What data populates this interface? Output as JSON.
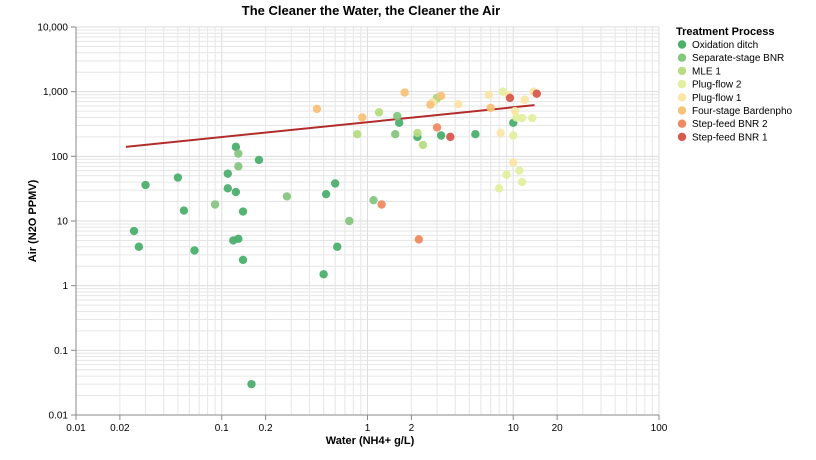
{
  "chart_data": {
    "type": "scatter",
    "title": "The Cleaner the Water, the Cleaner the Air",
    "xlabel": "Water (NH4+ g/L)",
    "ylabel": "Air (N2O PPMV)",
    "x_scale": "log",
    "y_scale": "log",
    "xlim": [
      0.01,
      100
    ],
    "ylim": [
      0.01,
      10000
    ],
    "grid": true,
    "x_ticks": [
      {
        "value": 0.01,
        "label": "0.01"
      },
      {
        "value": 0.02,
        "label": "0.02"
      },
      {
        "value": 0.1,
        "label": "0.1"
      },
      {
        "value": 0.2,
        "label": "0.2"
      },
      {
        "value": 1,
        "label": "1"
      },
      {
        "value": 2,
        "label": "2"
      },
      {
        "value": 10,
        "label": "10"
      },
      {
        "value": 20,
        "label": "20"
      },
      {
        "value": 100,
        "label": "100"
      }
    ],
    "y_ticks": [
      {
        "value": 0.01,
        "label": "0.01"
      },
      {
        "value": 0.1,
        "label": "0.1"
      },
      {
        "value": 1,
        "label": "1"
      },
      {
        "value": 10,
        "label": "10"
      },
      {
        "value": 100,
        "label": "100"
      },
      {
        "value": 1000,
        "label": "1,000"
      },
      {
        "value": 10000,
        "label": "10,000"
      }
    ],
    "legend": {
      "title": "Treatment Process",
      "position": "right"
    },
    "trend_line": {
      "color": "#b22c2c",
      "from": [
        0.022,
        140
      ],
      "to": [
        14,
        620
      ]
    },
    "series": [
      {
        "name": "Oxidation ditch",
        "color": "#4caf6e",
        "points": [
          [
            0.025,
            7
          ],
          [
            0.027,
            4
          ],
          [
            0.03,
            36
          ],
          [
            0.05,
            47
          ],
          [
            0.055,
            14.5
          ],
          [
            0.065,
            3.5
          ],
          [
            0.11,
            32
          ],
          [
            0.11,
            54
          ],
          [
            0.12,
            5
          ],
          [
            0.125,
            140
          ],
          [
            0.125,
            28
          ],
          [
            0.13,
            5.3
          ],
          [
            0.14,
            14
          ],
          [
            0.14,
            2.5
          ],
          [
            0.16,
            0.03
          ],
          [
            0.18,
            88
          ],
          [
            0.5,
            1.5
          ],
          [
            0.52,
            26
          ],
          [
            0.6,
            38
          ],
          [
            0.62,
            4
          ],
          [
            1.65,
            330
          ],
          [
            2.2,
            200
          ],
          [
            3.2,
            210
          ],
          [
            5.5,
            220
          ],
          [
            10,
            330
          ]
        ]
      },
      {
        "name": "Separate-stage BNR",
        "color": "#86c67f",
        "points": [
          [
            0.09,
            18
          ],
          [
            0.13,
            70
          ],
          [
            0.13,
            110
          ],
          [
            0.28,
            24
          ],
          [
            0.75,
            10
          ],
          [
            1.1,
            21
          ],
          [
            1.55,
            220
          ],
          [
            1.6,
            420
          ],
          [
            3,
            800
          ]
        ]
      },
      {
        "name": "MLE 1",
        "color": "#b7dc82",
        "points": [
          [
            0.85,
            220
          ],
          [
            1.2,
            480
          ],
          [
            2.2,
            230
          ],
          [
            2.4,
            150
          ],
          [
            3,
            780
          ]
        ]
      },
      {
        "name": "Plug-flow 2",
        "color": "#e2efa0",
        "points": [
          [
            8,
            32
          ],
          [
            9,
            52
          ],
          [
            10,
            210
          ],
          [
            10.5,
            400
          ],
          [
            11,
            60
          ],
          [
            11.5,
            390
          ],
          [
            11.5,
            40
          ],
          [
            13.5,
            390
          ],
          [
            8.5,
            1000
          ]
        ]
      },
      {
        "name": "Plug-flow 1",
        "color": "#fbe6a8",
        "points": [
          [
            8.2,
            230
          ],
          [
            10,
            80
          ],
          [
            10.3,
            500
          ],
          [
            12,
            750
          ],
          [
            13.8,
            1000
          ],
          [
            9.3,
            880
          ],
          [
            2.8,
            680
          ],
          [
            4.2,
            640
          ],
          [
            6.8,
            890
          ]
        ]
      },
      {
        "name": "Four-stage Bardenpho",
        "color": "#f7c27a",
        "points": [
          [
            0.45,
            540
          ],
          [
            0.92,
            400
          ],
          [
            1.8,
            970
          ],
          [
            2.7,
            630
          ],
          [
            3.2,
            860
          ],
          [
            7,
            560
          ]
        ]
      },
      {
        "name": "Step-feed BNR 2",
        "color": "#ee8a63",
        "points": [
          [
            1.25,
            18
          ],
          [
            2.25,
            5.2
          ],
          [
            3,
            280
          ]
        ]
      },
      {
        "name": "Step-feed BNR 1",
        "color": "#d75a4f",
        "points": [
          [
            3.7,
            200
          ],
          [
            9.5,
            800
          ],
          [
            14.5,
            930
          ]
        ]
      }
    ]
  }
}
